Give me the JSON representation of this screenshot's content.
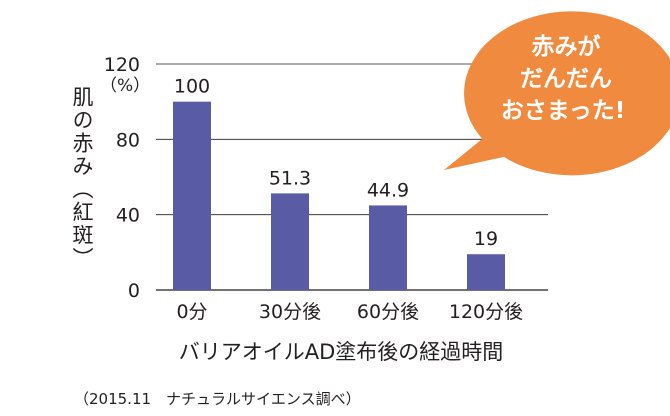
{
  "chart_data": {
    "type": "bar",
    "categories": [
      "0分",
      "30分後",
      "60分後",
      "120分後"
    ],
    "values": [
      100,
      51.3,
      44.9,
      19
    ],
    "value_labels": [
      "100",
      "51.3",
      "44.9",
      "19"
    ],
    "ylim": [
      0,
      120
    ],
    "yticks": [
      "0",
      "40",
      "80",
      "120"
    ],
    "ytick_values": [
      0,
      40,
      80,
      120
    ],
    "ylabel": "肌の赤み（紅斑）",
    "yunit": "（%）",
    "xlabel": "バリアオイルAD塗布後の経過時間",
    "grid": true,
    "bar_color": "#5a5ba5"
  },
  "callout": {
    "lines": [
      "赤みが",
      "だんだん",
      "おさまった!"
    ],
    "color": "#ef8a3e"
  },
  "footnote": "（2015.11　ナチュラルサイエンス調べ）"
}
